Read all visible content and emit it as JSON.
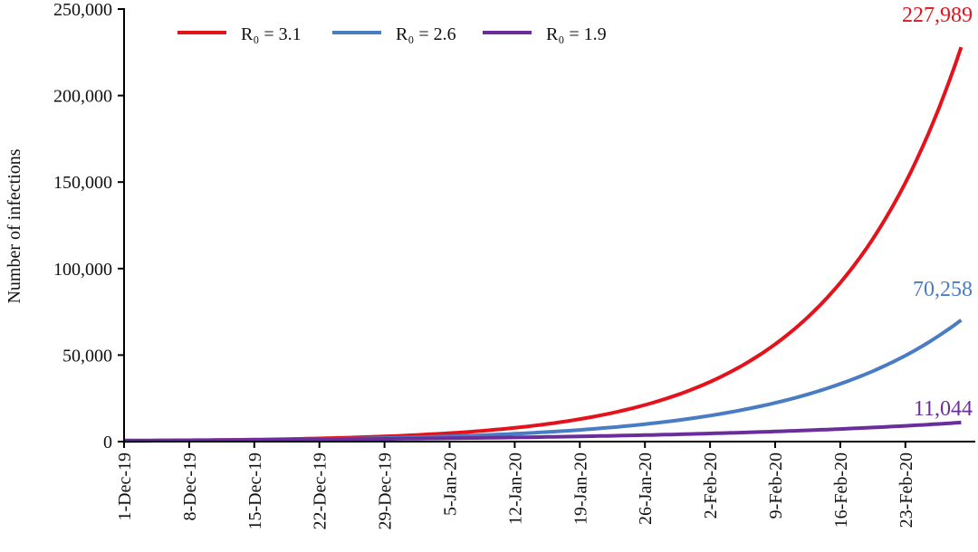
{
  "chart_data": {
    "type": "line",
    "title": "",
    "xlabel": "",
    "ylabel": "Number of infections",
    "ylim": [
      0,
      250000
    ],
    "yticks": [
      0,
      50000,
      100000,
      150000,
      200000,
      250000
    ],
    "ytick_labels": [
      "0",
      "50,000",
      "100,000",
      "150,000",
      "200,000",
      "250,000"
    ],
    "xtick_labels": [
      "1-Dec-19",
      "8-Dec-19",
      "15-Dec-19",
      "22-Dec-19",
      "29-Dec-19",
      "5-Jan-20",
      "12-Jan-20",
      "19-Jan-20",
      "26-Jan-20",
      "2-Feb-20",
      "9-Feb-20",
      "16-Feb-20",
      "23-Feb-20"
    ],
    "x": [
      "1-Dec-19",
      "8-Dec-19",
      "15-Dec-19",
      "22-Dec-19",
      "29-Dec-19",
      "5-Jan-20",
      "12-Jan-20",
      "19-Jan-20",
      "26-Jan-20",
      "2-Feb-20",
      "9-Feb-20",
      "16-Feb-20",
      "23-Feb-20",
      "29-Feb-20"
    ],
    "grid": false,
    "legend_placement": "top-left",
    "series": [
      {
        "name": "R₀ = 3.1",
        "color": "#e3121b",
        "end_label": "227,989",
        "values": [
          425,
          693,
          1130,
          1842,
          3002,
          4893,
          7976,
          13000,
          21190,
          34540,
          56300,
          91770,
          149600,
          227989
        ]
      },
      {
        "name": "R₀ = 2.6",
        "color": "#4a7cc4",
        "end_label": "70,258",
        "values": [
          415,
          618,
          921,
          1373,
          2045,
          3048,
          4541,
          6766,
          10080,
          15020,
          22380,
          33350,
          49690,
          70258
        ]
      },
      {
        "name": "R₀ = 1.9",
        "color": "#6b2d9c",
        "end_label": "11,044",
        "values": [
          640,
          798,
          996,
          1243,
          1551,
          1935,
          2414,
          3011,
          3757,
          4687,
          5848,
          7296,
          9102,
          11044
        ]
      }
    ]
  }
}
